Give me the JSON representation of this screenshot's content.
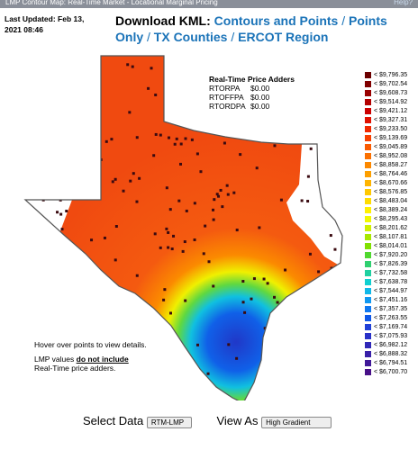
{
  "header": {
    "title": "LMP Contour Map: Real-Time Market - Locational Marginal Pricing",
    "help": "Help?"
  },
  "last_updated": "Last Updated: Feb 13, 2021 08:46",
  "download": {
    "label": "Download KML:",
    "links": [
      "Contours and Points",
      "Points Only",
      "TX Counties",
      "ERCOT Region"
    ],
    "separator": "/"
  },
  "adders": {
    "title": "Real-Time Price Adders",
    "rows": [
      [
        "RTORPA",
        "$0.00"
      ],
      [
        "RTOFFPA",
        "$0.00"
      ],
      [
        "RTORDPA",
        "$0.00"
      ]
    ]
  },
  "legend": [
    {
      "label": "< $9,796.35",
      "color": "#6b0000"
    },
    {
      "label": "< $9,702.54",
      "color": "#800000"
    },
    {
      "label": "< $9,608.73",
      "color": "#990000"
    },
    {
      "label": "< $9,514.92",
      "color": "#b30000"
    },
    {
      "label": "< $9,421.12",
      "color": "#cc0000"
    },
    {
      "label": "< $9,327.31",
      "color": "#e01000"
    },
    {
      "label": "< $9,233.50",
      "color": "#f02800"
    },
    {
      "label": "< $9,139.69",
      "color": "#f84000"
    },
    {
      "label": "< $9,045.89",
      "color": "#fa5a00"
    },
    {
      "label": "< $8,952.08",
      "color": "#fb7000"
    },
    {
      "label": "< $8,858.27",
      "color": "#fc8800"
    },
    {
      "label": "< $8,764.46",
      "color": "#fd9f00"
    },
    {
      "label": "< $8,670.66",
      "color": "#feb400"
    },
    {
      "label": "< $8,576.85",
      "color": "#ffc800"
    },
    {
      "label": "< $8,483.04",
      "color": "#ffdc00"
    },
    {
      "label": "< $8,389.24",
      "color": "#fff000"
    },
    {
      "label": "< $8,295.43",
      "color": "#f0f800"
    },
    {
      "label": "< $8,201.62",
      "color": "#d0f000"
    },
    {
      "label": "< $8,107.81",
      "color": "#a8e800"
    },
    {
      "label": "< $8,014.01",
      "color": "#80e000"
    },
    {
      "label": "< $7,920.20",
      "color": "#50d830"
    },
    {
      "label": "< $7,826.39",
      "color": "#30d070"
    },
    {
      "label": "< $7,732.58",
      "color": "#20d0a0"
    },
    {
      "label": "< $7,638.78",
      "color": "#10d0d0"
    },
    {
      "label": "< $7,544.97",
      "color": "#10b8e8"
    },
    {
      "label": "< $7,451.16",
      "color": "#1098f0"
    },
    {
      "label": "< $7,357.35",
      "color": "#1078f0"
    },
    {
      "label": "< $7,263.55",
      "color": "#1058e8"
    },
    {
      "label": "< $7,169.74",
      "color": "#2040d8"
    },
    {
      "label": "< $7,075.93",
      "color": "#2830c8"
    },
    {
      "label": "< $6,982.12",
      "color": "#3028b8"
    },
    {
      "label": "< $6,888.32",
      "color": "#3820a8"
    },
    {
      "label": "< $6,794.51",
      "color": "#401898"
    },
    {
      "label": "< $6,700.70",
      "color": "#481088"
    }
  ],
  "notes": {
    "hover": "Hover over points to view details.",
    "lmp_prefix": "LMP values",
    "lmp_emphasis": "do not include",
    "lmp_suffix": "Real-Time price adders."
  },
  "controls": {
    "select_label": "Select Data",
    "select_value": "RTM-LMP",
    "view_label": "View As",
    "view_value": "High Gradient"
  }
}
